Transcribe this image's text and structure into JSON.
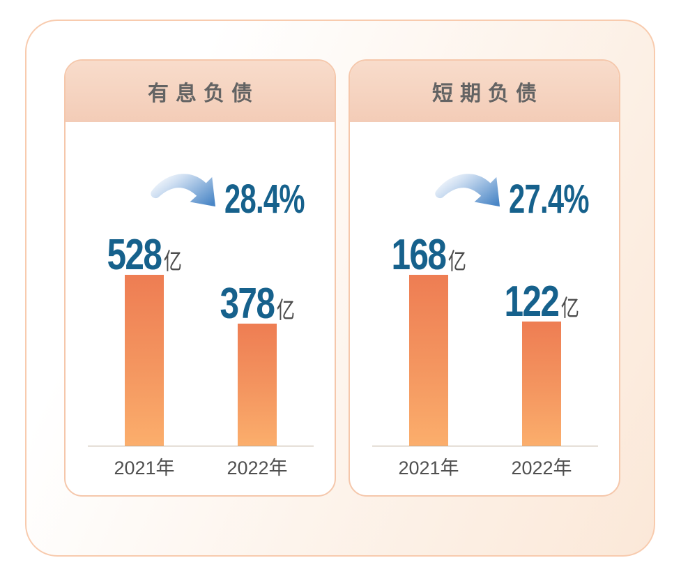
{
  "panel": {
    "border_color": "#f8cbae",
    "background_from": "#ffffff",
    "background_to": "#fbe8d8"
  },
  "colors": {
    "value_blue": "#16618c",
    "bar_top": "#ee7d53",
    "bar_bottom": "#fbae6c",
    "header_peach": "#f5d3c0",
    "axis_line": "#b9a791",
    "label_gray": "#4f4f4f"
  },
  "chart_data": [
    {
      "type": "bar",
      "title": "有息负债",
      "categories": [
        "2021年",
        "2022年"
      ],
      "values": [
        528,
        378
      ],
      "unit": "亿",
      "change_label": "28.4%",
      "change_direction": "down",
      "legend": "none",
      "grid": "off",
      "ylim": [
        0,
        528
      ]
    },
    {
      "type": "bar",
      "title": "短期负债",
      "categories": [
        "2021年",
        "2022年"
      ],
      "values": [
        168,
        122
      ],
      "unit": "亿",
      "change_label": "27.4%",
      "change_direction": "down",
      "legend": "none",
      "grid": "off",
      "ylim": [
        0,
        168
      ]
    }
  ]
}
